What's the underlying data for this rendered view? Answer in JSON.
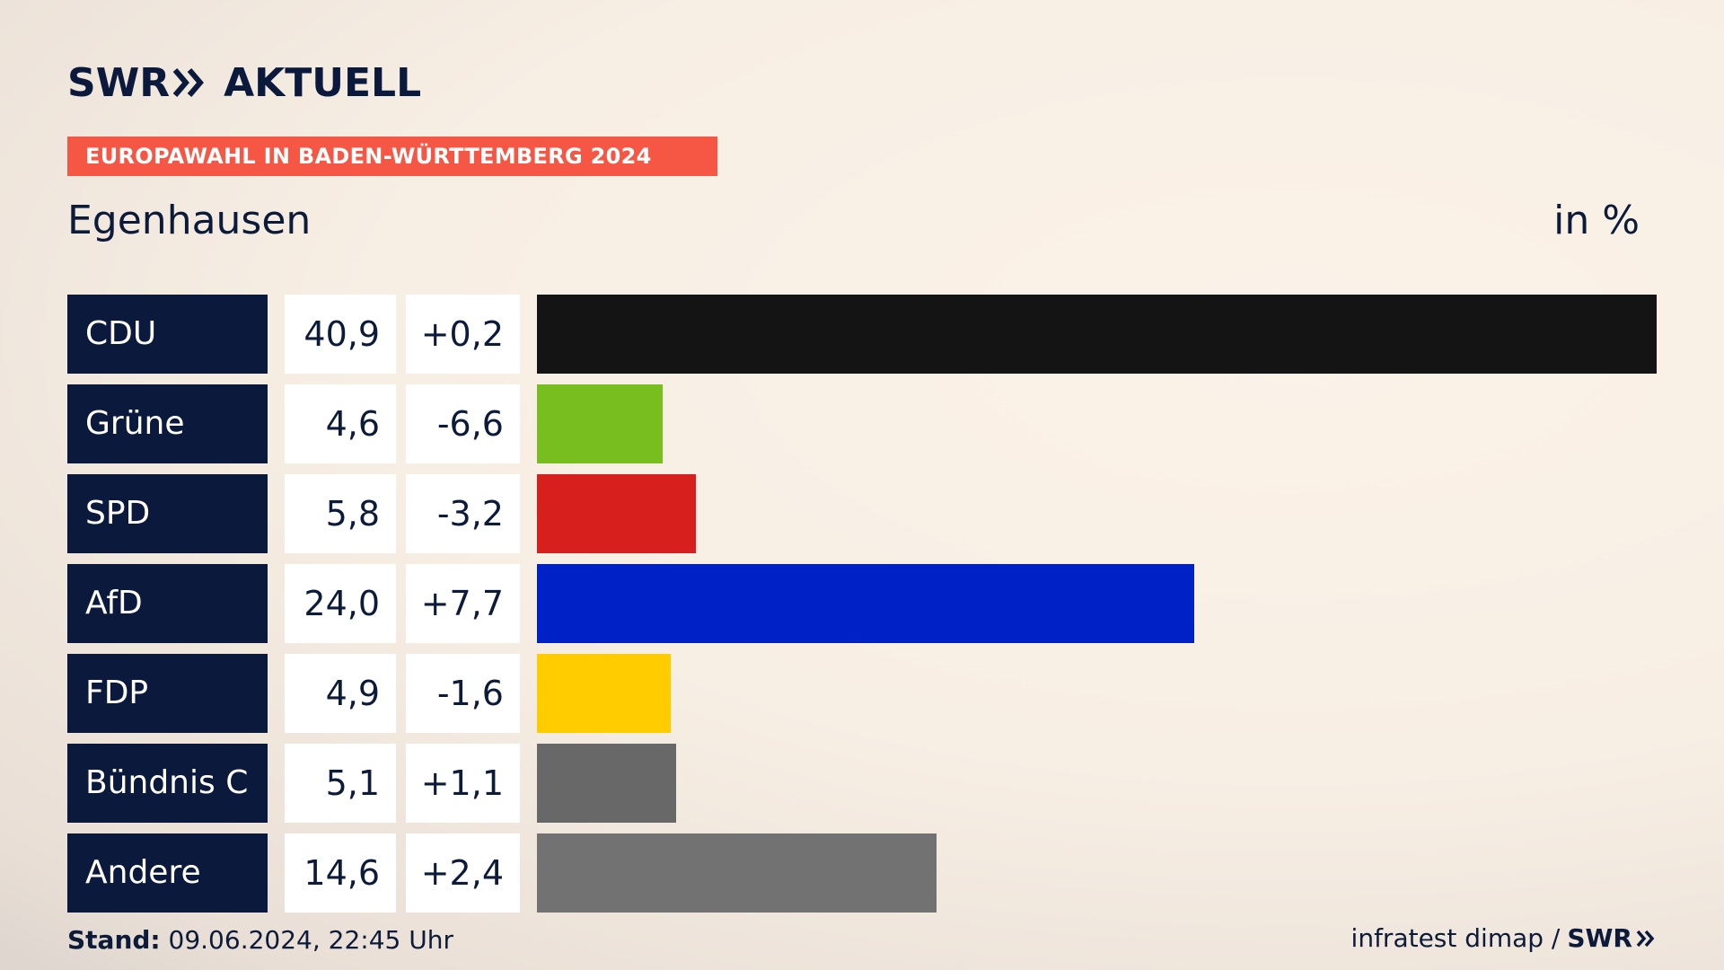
{
  "header": {
    "logo_text": "SWR",
    "logo_text2": "AKTUELL",
    "banner": "EUROPAWAHL IN BADEN-WÜRTTEMBERG 2024",
    "place": "Egenhausen",
    "unit": "in %"
  },
  "colors": {
    "navy": "#0b1a3c",
    "banner": "#f65745"
  },
  "chart_data": {
    "type": "bar",
    "title": "Egenhausen",
    "ylabel": "in %",
    "xlim": [
      0,
      40.9
    ],
    "categories": [
      "CDU",
      "Grüne",
      "SPD",
      "AfD",
      "FDP",
      "Bündnis C",
      "Andere"
    ],
    "values": [
      40.9,
      4.6,
      5.8,
      24.0,
      4.9,
      5.1,
      14.6
    ],
    "value_labels": [
      "40,9",
      "4,6",
      "5,8",
      "24,0",
      "4,9",
      "5,1",
      "14,6"
    ],
    "diff_labels": [
      "+0,2",
      "-6,6",
      "-3,2",
      "+7,7",
      "-1,6",
      "+1,1",
      "+2,4"
    ],
    "colors": [
      "#141414",
      "#78be1e",
      "#d71f1d",
      "#0021c6",
      "#ffcc00",
      "#686868",
      "#727272"
    ]
  },
  "footer": {
    "stand_label": "Stand:",
    "stand_value": "09.06.2024, 22:45 Uhr",
    "source": "infratest dimap /",
    "brand": "SWR"
  }
}
